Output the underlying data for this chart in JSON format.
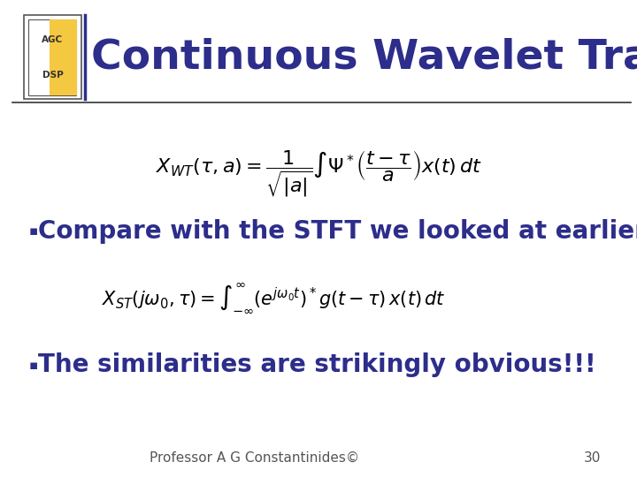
{
  "title": "Continuous Wavelet Transform",
  "title_color": "#2d2d8b",
  "title_fontsize": 34,
  "background_color": "#ffffff",
  "logo_text_agc": "AGC",
  "logo_text_dsp": "DSP",
  "logo_color": "#f5c842",
  "bullet1": "Compare with the STFT we looked at earlier",
  "bullet2": "The similarities are strikingly obvious!!!",
  "bullet_color": "#2d2d8b",
  "bullet_fontsize": 20,
  "footer_text": "Professor A G Constantinides©",
  "footer_page": "30",
  "footer_fontsize": 11,
  "formula_color": "#000000",
  "divider_color": "#2d2d8b",
  "header_line_color": "#333333",
  "logo_border_color": "#555555"
}
